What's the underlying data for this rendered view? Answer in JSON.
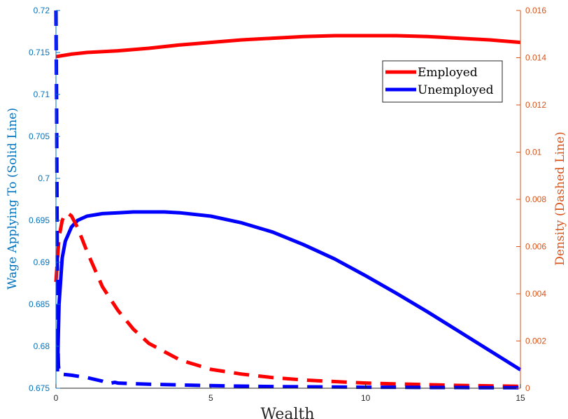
{
  "chart_data": {
    "type": "line",
    "xlabel": "Wealth",
    "ylabel_left": "Wage Applying To (Solid Line)",
    "ylabel_right": "Density (Dashed Line)",
    "xlim": [
      0,
      15
    ],
    "ylim_left": [
      0.675,
      0.72
    ],
    "ylim_right": [
      0,
      0.016
    ],
    "x_ticks": [
      "0",
      "5",
      "10",
      "15"
    ],
    "left_ticks": [
      "0.675",
      "0.68",
      "0.685",
      "0.69",
      "0.695",
      "0.7",
      "0.705",
      "0.71",
      "0.715",
      "0.72"
    ],
    "right_ticks": [
      "0",
      "0.002",
      "0.004",
      "0.006",
      "0.008",
      "0.01",
      "0.012",
      "0.014",
      "0.016"
    ],
    "grid": false,
    "legend_position": "top-right",
    "legend": [
      {
        "label": "Employed",
        "color": "#ff0000"
      },
      {
        "label": "Unemployed",
        "color": "#0000ff"
      }
    ],
    "series": [
      {
        "name": "Employed",
        "axis": "left",
        "style": "solid",
        "color": "#ff0000",
        "x": [
          0,
          0.5,
          1,
          2,
          3,
          4,
          5,
          6,
          7,
          8,
          9,
          10,
          11,
          12,
          13,
          14,
          15
        ],
        "y": [
          0.7145,
          0.7148,
          0.715,
          0.7152,
          0.7155,
          0.7159,
          0.7162,
          0.7165,
          0.7167,
          0.7169,
          0.717,
          0.717,
          0.717,
          0.7169,
          0.7167,
          0.7165,
          0.7162
        ]
      },
      {
        "name": "Unemployed",
        "axis": "left",
        "style": "solid",
        "color": "#0000ff",
        "x": [
          0.05,
          0.1,
          0.2,
          0.3,
          0.5,
          0.7,
          1,
          1.5,
          2,
          2.5,
          3,
          3.5,
          4,
          5,
          6,
          7,
          8,
          9,
          10,
          11,
          12,
          13,
          14,
          15
        ],
        "y": [
          0.677,
          0.685,
          0.6905,
          0.6925,
          0.6942,
          0.695,
          0.6955,
          0.6958,
          0.6959,
          0.696,
          0.696,
          0.696,
          0.6959,
          0.6955,
          0.6947,
          0.6936,
          0.6921,
          0.6904,
          0.6884,
          0.6863,
          0.6841,
          0.6818,
          0.6795,
          0.6772
        ]
      },
      {
        "name": "Employed",
        "axis": "right",
        "style": "dashed",
        "color": "#ff0000",
        "x": [
          0,
          0.05,
          0.1,
          0.2,
          0.3,
          0.4,
          0.5,
          0.7,
          1,
          1.5,
          2,
          2.5,
          3,
          4,
          5,
          6,
          7,
          8,
          9,
          10,
          11,
          12,
          13,
          14,
          15
        ],
        "y": [
          0.0045,
          0.0055,
          0.0064,
          0.0071,
          0.0074,
          0.0074,
          0.0073,
          0.0068,
          0.0058,
          0.0043,
          0.0033,
          0.0025,
          0.0019,
          0.0012,
          0.0008,
          0.0006,
          0.00045,
          0.00035,
          0.00028,
          0.00022,
          0.00018,
          0.00015,
          0.00012,
          0.0001,
          8e-05
        ]
      },
      {
        "name": "Unemployed",
        "axis": "right",
        "style": "dashed",
        "color": "#0000ff",
        "x": [
          0,
          0.02,
          0.04,
          0.06,
          0.08,
          0.1,
          0.15,
          0.5,
          1,
          1.5,
          1.7,
          1.9,
          2,
          3,
          4,
          5,
          6,
          7,
          8,
          9,
          10,
          11,
          12,
          13,
          14,
          15
        ],
        "y": [
          0.016,
          0.012,
          0.006,
          0.002,
          0.001,
          0.0007,
          0.0006,
          0.00055,
          0.00045,
          0.0003,
          0.0002,
          0.00025,
          0.00022,
          0.00017,
          0.00014,
          0.00011,
          9e-05,
          7e-05,
          6e-05,
          5e-05,
          4e-05,
          4e-05,
          3e-05,
          3e-05,
          2e-05,
          2e-05
        ]
      }
    ]
  },
  "colors": {
    "left_axis": "#0072bd",
    "right_axis": "#d95319",
    "employed": "#ff0000",
    "unemployed": "#0000ff"
  }
}
